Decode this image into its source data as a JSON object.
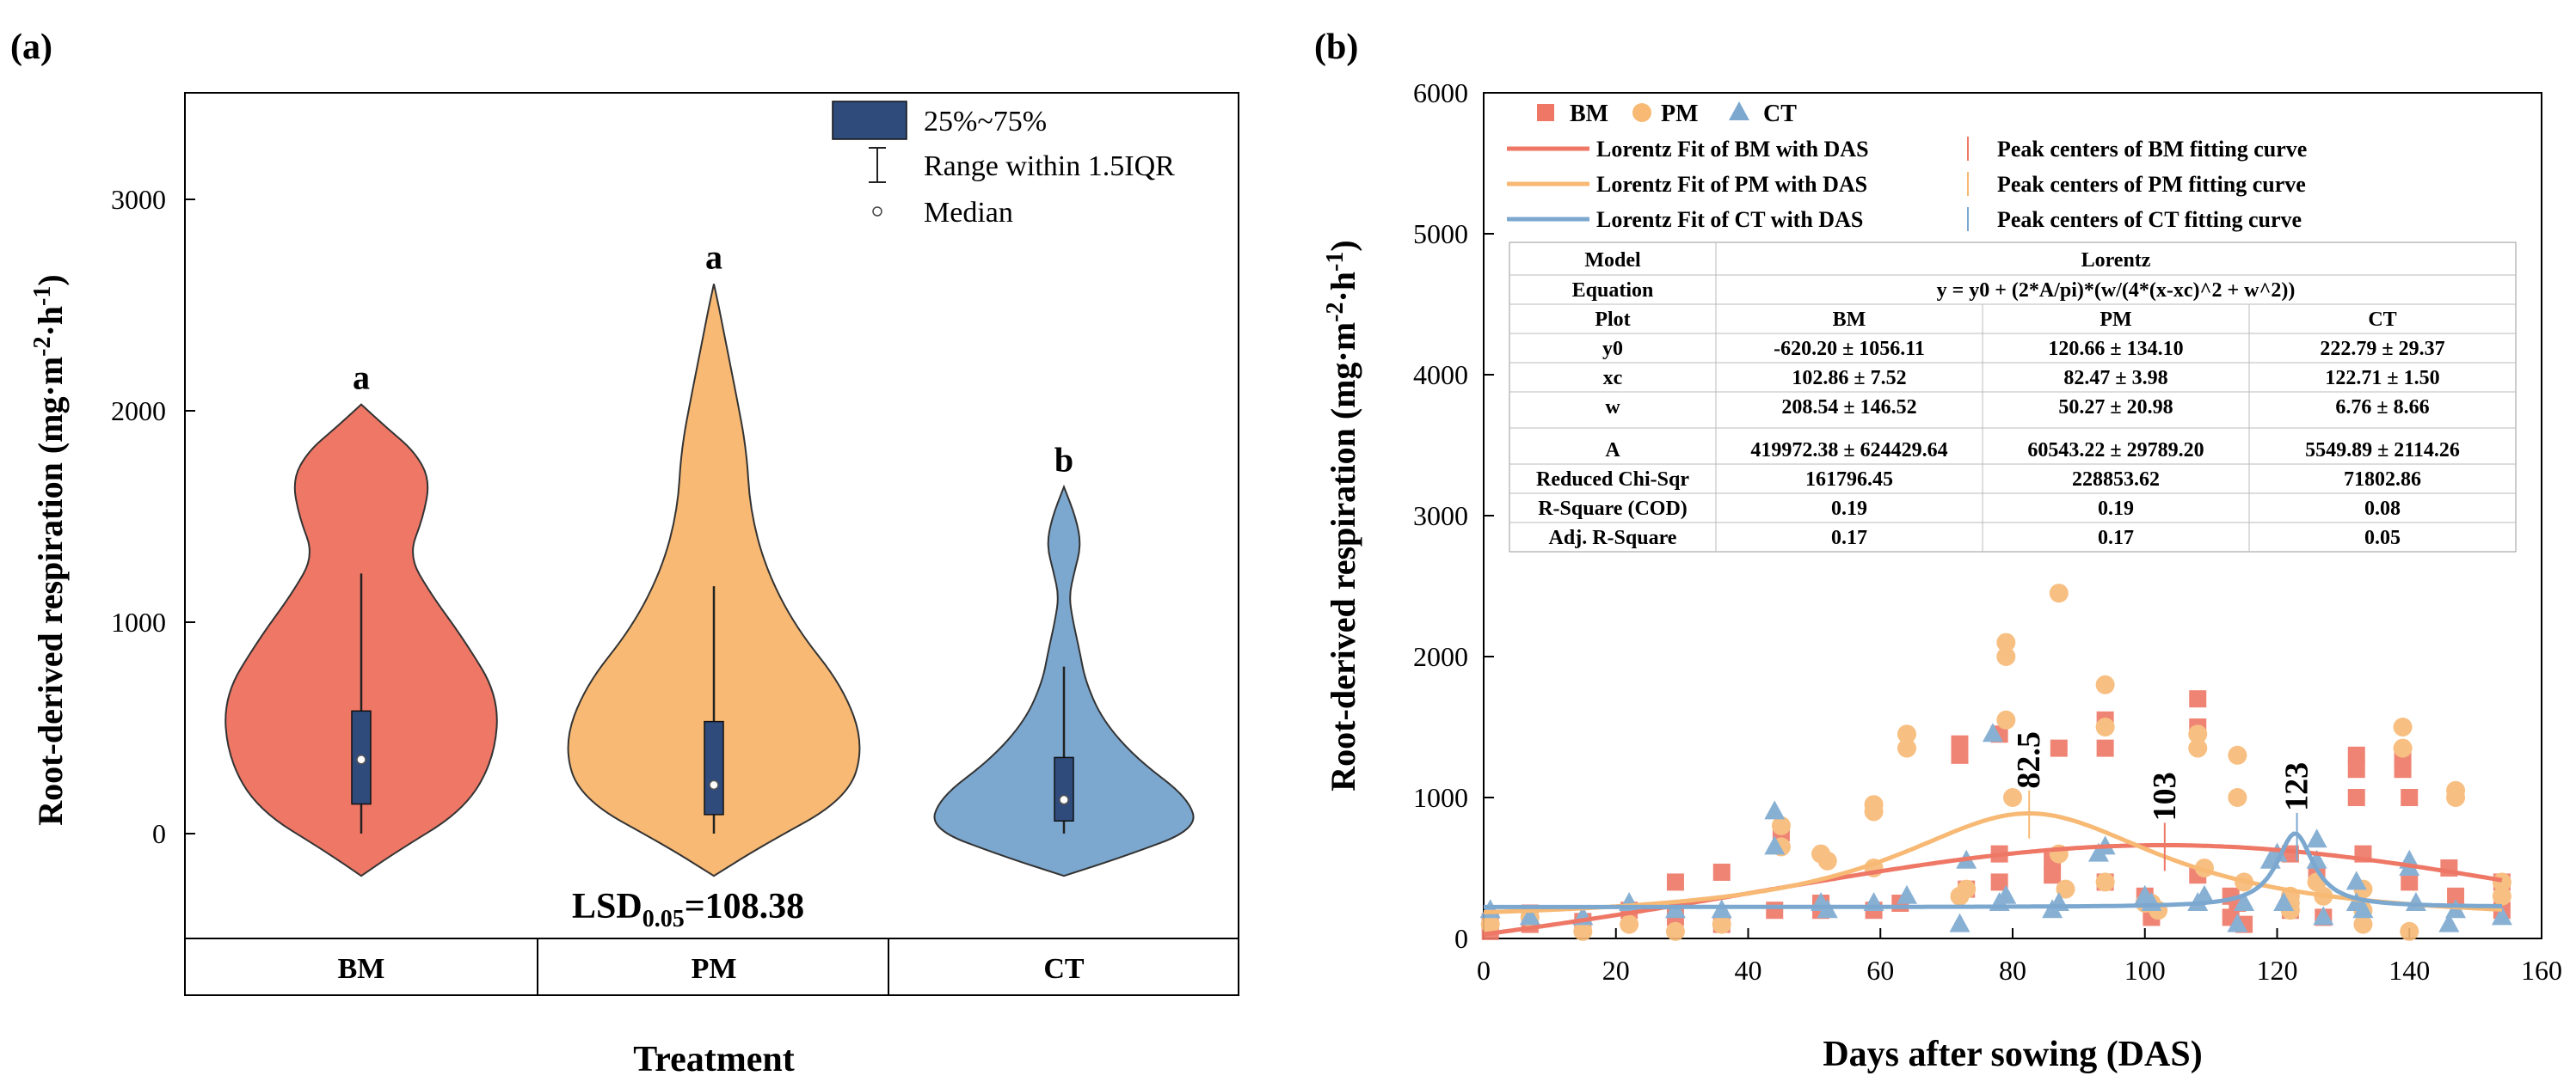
{
  "chart_data": [
    {
      "panel": "(a)",
      "type": "violin",
      "ylabel": "Root-derived respiration (mg·m⁻²·h⁻¹)",
      "xlabel": "Treatment",
      "ylim": [
        -500,
        3500
      ],
      "yticks": [
        0,
        1000,
        2000,
        3000
      ],
      "groups": [
        {
          "name": "BM",
          "color": "#EE7766",
          "letter": "a",
          "min": 0,
          "q1": 140,
          "median": 350,
          "q3": 580,
          "whisker_high": 1230,
          "violin_low": -200,
          "violin_high": 2030
        },
        {
          "name": "PM",
          "color": "#F7B974",
          "letter": "a",
          "min": 0,
          "q1": 90,
          "median": 230,
          "q3": 530,
          "whisker_high": 1170,
          "violin_low": -200,
          "violin_high": 2600
        },
        {
          "name": "CT",
          "color": "#7CA8CF",
          "letter": "b",
          "min": 0,
          "q1": 60,
          "median": 160,
          "q3": 360,
          "whisker_high": 790,
          "violin_low": -200,
          "violin_high": 1640
        }
      ],
      "legend": {
        "box": "25%~75%",
        "range": "Range within 1.5IQR",
        "median": "Median"
      },
      "lsd_main": "LSD",
      "lsd_sub": "0.05",
      "lsd_value": "=108.38"
    },
    {
      "panel": "(b)",
      "type": "scatter",
      "xlabel": "Days after sowing (DAS)",
      "ylabel": "Root-derived respiration (mg·m⁻²·h⁻¹)",
      "xlim": [
        0,
        160
      ],
      "ylim": [
        0,
        6000
      ],
      "xticks": [
        0,
        20,
        40,
        60,
        80,
        100,
        120,
        140,
        160
      ],
      "yticks": [
        0,
        1000,
        2000,
        3000,
        4000,
        5000,
        6000
      ],
      "series": [
        {
          "name": "BM",
          "marker": "square",
          "color": "#EE7766",
          "x": [
            1,
            1,
            7,
            7,
            15,
            22,
            29,
            29,
            36,
            36,
            44,
            45,
            51,
            51,
            59,
            63,
            72,
            72,
            73,
            78,
            78,
            78,
            86,
            86,
            87,
            94,
            94,
            94,
            100,
            101,
            101,
            108,
            108,
            108,
            113,
            113,
            114,
            115,
            122,
            122,
            126,
            127,
            132,
            132,
            132,
            133,
            139,
            139,
            140,
            140,
            146,
            147,
            154,
            154
          ],
          "y": [
            50,
            120,
            100,
            180,
            120,
            200,
            150,
            400,
            100,
            470,
            200,
            750,
            200,
            250,
            200,
            250,
            1300,
            1380,
            350,
            1450,
            400,
            600,
            450,
            550,
            1350,
            1550,
            1350,
            400,
            300,
            200,
            150,
            1700,
            1500,
            450,
            300,
            150,
            250,
            100,
            200,
            600,
            450,
            150,
            1300,
            1200,
            1000,
            600,
            1200,
            1300,
            1000,
            400,
            500,
            300,
            400,
            200
          ]
        },
        {
          "name": "PM",
          "marker": "circle",
          "color": "#F7B974",
          "x": [
            1,
            7,
            15,
            22,
            29,
            36,
            45,
            45,
            51,
            52,
            59,
            59,
            59,
            64,
            64,
            72,
            73,
            79,
            79,
            79,
            80,
            87,
            87,
            88,
            94,
            94,
            94,
            100,
            101,
            102,
            108,
            108,
            109,
            114,
            114,
            115,
            122,
            122,
            122,
            126,
            127,
            133,
            133,
            133,
            139,
            139,
            140,
            147,
            147,
            154,
            154
          ],
          "y": [
            100,
            150,
            50,
            100,
            50,
            100,
            800,
            650,
            600,
            550,
            950,
            900,
            500,
            1450,
            1350,
            300,
            350,
            2100,
            2000,
            1550,
            1000,
            2450,
            600,
            350,
            1800,
            1500,
            400,
            250,
            250,
            200,
            1450,
            1350,
            500,
            1300,
            1000,
            400,
            300,
            250,
            200,
            400,
            300,
            350,
            200,
            100,
            1500,
            1350,
            50,
            1050,
            1000,
            400,
            300
          ]
        },
        {
          "name": "CT",
          "marker": "triangle",
          "color": "#7CA8CF",
          "x": [
            1,
            7,
            15,
            22,
            29,
            36,
            44,
            44,
            51,
            52,
            59,
            64,
            72,
            73,
            77,
            78,
            79,
            86,
            87,
            93,
            94,
            100,
            101,
            108,
            109,
            114,
            115,
            119,
            120,
            121,
            126,
            126,
            127,
            132,
            132,
            133,
            140,
            140,
            141,
            146,
            147,
            154
          ],
          "y": [
            200,
            150,
            150,
            250,
            200,
            200,
            900,
            650,
            250,
            200,
            250,
            300,
            100,
            550,
            1450,
            250,
            300,
            200,
            250,
            600,
            650,
            300,
            250,
            250,
            300,
            100,
            250,
            550,
            600,
            250,
            700,
            550,
            150,
            400,
            250,
            200,
            500,
            550,
            250,
            100,
            200,
            150
          ]
        }
      ],
      "fits": [
        {
          "name": "Lorentz Fit of BM with DAS",
          "color": "#EE7766",
          "y0": -620.2,
          "xc": 102.86,
          "w": 208.54,
          "A": 419972.38
        },
        {
          "name": "Lorentz Fit of PM with DAS",
          "color": "#F7B974",
          "y0": 120.66,
          "xc": 82.47,
          "w": 50.27,
          "A": 60543.22
        },
        {
          "name": "Lorentz Fit of CT with DAS",
          "color": "#7CA8CF",
          "y0": 222.79,
          "xc": 122.71,
          "w": 6.76,
          "A": 5549.89
        }
      ],
      "peak_labels": [
        {
          "text": "82.5",
          "x": 82.5,
          "series": "PM"
        },
        {
          "text": "103",
          "x": 103,
          "series": "BM"
        },
        {
          "text": "123",
          "x": 123,
          "series": "CT"
        }
      ],
      "legend": {
        "markers": [
          "BM",
          "PM",
          "CT"
        ],
        "lines": [
          "Lorentz Fit of BM with DAS",
          "Lorentz Fit of PM with DAS",
          "Lorentz Fit of CT with DAS"
        ],
        "peaks": [
          "Peak centers of BM fitting curve",
          "Peak centers of PM fitting curve",
          "Peak centers of CT fitting curve"
        ]
      },
      "table": {
        "rows": [
          [
            "Model",
            "Lorentz"
          ],
          [
            "Equation",
            "y = y0 + (2*A/pi)*(w/(4*(x-xc)^2 + w^2))"
          ],
          [
            "Plot",
            "BM",
            "PM",
            "CT"
          ],
          [
            "y0",
            "-620.20 ± 1056.11",
            "120.66 ± 134.10",
            "222.79 ± 29.37"
          ],
          [
            "xc",
            "102.86 ± 7.52",
            "82.47 ± 3.98",
            "122.71 ± 1.50"
          ],
          [
            "w",
            "208.54 ± 146.52",
            "50.27 ± 20.98",
            "6.76 ± 8.66"
          ],
          [
            "A",
            "419972.38 ± 624429.64",
            "60543.22 ± 29789.20",
            "5549.89 ± 2114.26"
          ],
          [
            "Reduced Chi-Sqr",
            "161796.45",
            "228853.62",
            "71802.86"
          ],
          [
            "R-Square (COD)",
            "0.19",
            "0.19",
            "0.08"
          ],
          [
            "Adj. R-Square",
            "0.17",
            "0.17",
            "0.05"
          ]
        ]
      }
    }
  ]
}
